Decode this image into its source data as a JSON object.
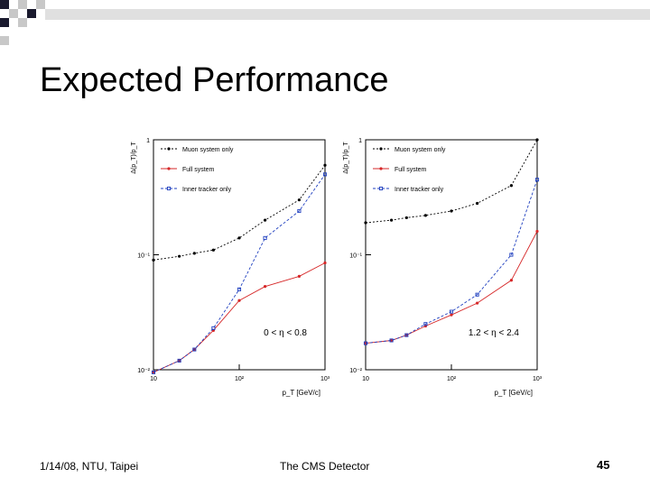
{
  "slide": {
    "title": "Expected Performance",
    "footer_left": "1/14/08, NTU, Taipei",
    "footer_center": "The CMS Detector",
    "page_number": "45"
  },
  "colors": {
    "deco_dark": "#1a1a2e",
    "deco_gray": "#c8c8c8",
    "muon": "#000000",
    "full": "#d62728",
    "inner": "#1f3fbf"
  },
  "chart_data": [
    {
      "type": "line",
      "scale": "log-log",
      "ylabel": "Δ(p_T)/p_T",
      "xlabel": "p_T [GeV/c]",
      "xlim": [
        10,
        1000
      ],
      "ylim": [
        0.01,
        1
      ],
      "xticks": [
        "10",
        "10²",
        "10³"
      ],
      "yticks": [
        "1",
        "10⁻¹",
        "10⁻²"
      ],
      "annotation": "0 < η < 0.8",
      "legend": [
        "Muon system only",
        "Full system",
        "Inner tracker only"
      ],
      "series": [
        {
          "name": "Muon system only",
          "x": [
            10,
            20,
            30,
            50,
            100,
            200,
            500,
            1000
          ],
          "y": [
            0.09,
            0.097,
            0.103,
            0.11,
            0.14,
            0.2,
            0.3,
            0.6
          ]
        },
        {
          "name": "Full system",
          "x": [
            10,
            20,
            30,
            50,
            100,
            200,
            500,
            1000
          ],
          "y": [
            0.0095,
            0.012,
            0.015,
            0.022,
            0.04,
            0.053,
            0.065,
            0.085
          ]
        },
        {
          "name": "Inner tracker only",
          "x": [
            10,
            20,
            30,
            50,
            100,
            200,
            500,
            1000
          ],
          "y": [
            0.0095,
            0.012,
            0.015,
            0.023,
            0.05,
            0.14,
            0.24,
            0.5
          ]
        }
      ]
    },
    {
      "type": "line",
      "scale": "log-log",
      "ylabel": "Δ(p_T)/p_T",
      "xlabel": "p_T [GeV/c]",
      "xlim": [
        10,
        1000
      ],
      "ylim": [
        0.01,
        1
      ],
      "xticks": [
        "10",
        "10²",
        "10³"
      ],
      "yticks": [
        "1",
        "10⁻¹",
        "10⁻²"
      ],
      "annotation": "1.2 < η < 2.4",
      "legend": [
        "Muon system only",
        "Full system",
        "Inner tracker only"
      ],
      "series": [
        {
          "name": "Muon system only",
          "x": [
            10,
            20,
            30,
            50,
            100,
            200,
            500,
            1000
          ],
          "y": [
            0.19,
            0.2,
            0.21,
            0.22,
            0.24,
            0.28,
            0.4,
            1.0
          ]
        },
        {
          "name": "Full system",
          "x": [
            10,
            20,
            30,
            50,
            100,
            200,
            500,
            1000
          ],
          "y": [
            0.017,
            0.018,
            0.02,
            0.024,
            0.03,
            0.038,
            0.06,
            0.16
          ]
        },
        {
          "name": "Inner tracker only",
          "x": [
            10,
            20,
            30,
            50,
            100,
            200,
            500,
            1000
          ],
          "y": [
            0.017,
            0.018,
            0.02,
            0.025,
            0.032,
            0.045,
            0.1,
            0.45
          ]
        }
      ]
    }
  ]
}
